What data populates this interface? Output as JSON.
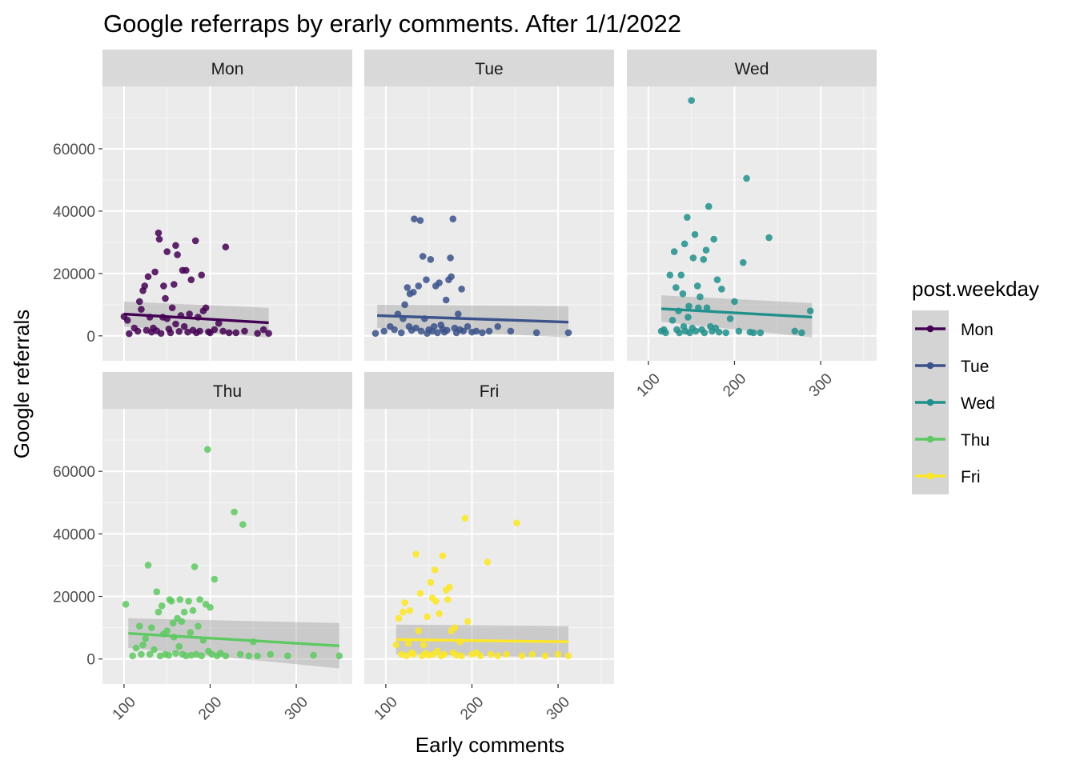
{
  "chart_data": {
    "type": "scatter",
    "title": "Google referraps by erarly comments. After 1/1/2022",
    "xlabel": "Early comments",
    "ylabel": "Google referrals",
    "xlim": [
      75,
      365
    ],
    "ylim": [
      -8000,
      80000
    ],
    "x_ticks": [
      100,
      200,
      300
    ],
    "y_ticks": [
      0,
      20000,
      40000,
      60000
    ],
    "grid": true,
    "facet_layout": "3 columns, 2 rows",
    "legend": {
      "title": "post.weekday",
      "position": "right"
    },
    "series": [
      {
        "name": "Mon",
        "color": "#440154",
        "trend": {
          "x": [
            100,
            268
          ],
          "y": [
            7000,
            4200
          ]
        },
        "band": {
          "upper": [
            11000,
            9000
          ],
          "lower": [
            3000,
            -500
          ]
        },
        "points": [
          [
            100,
            6200
          ],
          [
            104,
            5000
          ],
          [
            106,
            700
          ],
          [
            112,
            2500
          ],
          [
            116,
            1500
          ],
          [
            118,
            11000
          ],
          [
            120,
            8500
          ],
          [
            122,
            14500
          ],
          [
            124,
            16000
          ],
          [
            126,
            1800
          ],
          [
            128,
            19000
          ],
          [
            130,
            6000
          ],
          [
            132,
            1200
          ],
          [
            134,
            2500
          ],
          [
            136,
            20500
          ],
          [
            138,
            1600
          ],
          [
            140,
            33000
          ],
          [
            141,
            31000
          ],
          [
            143,
            800
          ],
          [
            145,
            6000
          ],
          [
            146,
            16000
          ],
          [
            148,
            12000
          ],
          [
            150,
            27000
          ],
          [
            150,
            5500
          ],
          [
            152,
            2200
          ],
          [
            154,
            1000
          ],
          [
            156,
            9000
          ],
          [
            158,
            16500
          ],
          [
            160,
            29000
          ],
          [
            160,
            3800
          ],
          [
            162,
            26000
          ],
          [
            164,
            1400
          ],
          [
            166,
            6500
          ],
          [
            168,
            21000
          ],
          [
            170,
            3000
          ],
          [
            172,
            21000
          ],
          [
            174,
            1200
          ],
          [
            176,
            7000
          ],
          [
            178,
            18000
          ],
          [
            180,
            1800
          ],
          [
            183,
            30500
          ],
          [
            184,
            1000
          ],
          [
            186,
            6000
          ],
          [
            188,
            1500
          ],
          [
            190,
            19500
          ],
          [
            192,
            8000
          ],
          [
            195,
            9000
          ],
          [
            198,
            1300
          ],
          [
            200,
            1000
          ],
          [
            205,
            2000
          ],
          [
            210,
            4000
          ],
          [
            215,
            1500
          ],
          [
            218,
            28500
          ],
          [
            222,
            1000
          ],
          [
            230,
            1000
          ],
          [
            240,
            1500
          ],
          [
            255,
            800
          ],
          [
            262,
            2000
          ],
          [
            268,
            800
          ]
        ]
      },
      {
        "name": "Tue",
        "color": "#3b528b",
        "trend": {
          "x": [
            90,
            312
          ],
          "y": [
            6500,
            4400
          ]
        },
        "band": {
          "upper": [
            10000,
            9500
          ],
          "lower": [
            2500,
            -500
          ]
        },
        "points": [
          [
            88,
            800
          ],
          [
            98,
            1500
          ],
          [
            105,
            3000
          ],
          [
            110,
            2000
          ],
          [
            114,
            7000
          ],
          [
            118,
            1000
          ],
          [
            120,
            5500
          ],
          [
            122,
            10000
          ],
          [
            125,
            15500
          ],
          [
            127,
            3000
          ],
          [
            128,
            13500
          ],
          [
            130,
            1800
          ],
          [
            132,
            14000
          ],
          [
            133,
            37500
          ],
          [
            135,
            2500
          ],
          [
            138,
            16000
          ],
          [
            140,
            37000
          ],
          [
            141,
            1500
          ],
          [
            143,
            25500
          ],
          [
            145,
            5500
          ],
          [
            147,
            18000
          ],
          [
            148,
            800
          ],
          [
            150,
            2000
          ],
          [
            152,
            24500
          ],
          [
            154,
            1500
          ],
          [
            156,
            3000
          ],
          [
            158,
            16000
          ],
          [
            160,
            1000
          ],
          [
            162,
            17000
          ],
          [
            164,
            3500
          ],
          [
            166,
            2200
          ],
          [
            168,
            1200
          ],
          [
            170,
            11500
          ],
          [
            171,
            1800
          ],
          [
            173,
            18000
          ],
          [
            175,
            25000
          ],
          [
            176,
            19000
          ],
          [
            178,
            37500
          ],
          [
            180,
            2500
          ],
          [
            182,
            1000
          ],
          [
            184,
            7000
          ],
          [
            186,
            2000
          ],
          [
            188,
            15000
          ],
          [
            190,
            1500
          ],
          [
            195,
            3000
          ],
          [
            200,
            1200
          ],
          [
            205,
            1500
          ],
          [
            212,
            1000
          ],
          [
            220,
            1500
          ],
          [
            230,
            3000
          ],
          [
            245,
            1500
          ],
          [
            275,
            1000
          ],
          [
            312,
            1000
          ]
        ]
      },
      {
        "name": "Wed",
        "color": "#21908c",
        "trend": {
          "x": [
            115,
            290
          ],
          "y": [
            8700,
            6000
          ]
        },
        "band": {
          "upper": [
            13000,
            10500
          ],
          "lower": [
            4500,
            -500
          ]
        },
        "points": [
          [
            115,
            1500
          ],
          [
            118,
            2000
          ],
          [
            120,
            1000
          ],
          [
            125,
            19500
          ],
          [
            128,
            5000
          ],
          [
            130,
            27000
          ],
          [
            132,
            15500
          ],
          [
            133,
            2000
          ],
          [
            135,
            8000
          ],
          [
            136,
            1000
          ],
          [
            138,
            19500
          ],
          [
            140,
            13500
          ],
          [
            141,
            3000
          ],
          [
            142,
            29500
          ],
          [
            143,
            1500
          ],
          [
            145,
            38000
          ],
          [
            146,
            6000
          ],
          [
            147,
            9500
          ],
          [
            148,
            1000
          ],
          [
            150,
            75500
          ],
          [
            151,
            2500
          ],
          [
            152,
            25000
          ],
          [
            154,
            32500
          ],
          [
            155,
            1500
          ],
          [
            157,
            16000
          ],
          [
            158,
            9000
          ],
          [
            160,
            12500
          ],
          [
            162,
            2000
          ],
          [
            164,
            24500
          ],
          [
            165,
            1000
          ],
          [
            167,
            27500
          ],
          [
            168,
            9000
          ],
          [
            170,
            41500
          ],
          [
            172,
            3000
          ],
          [
            174,
            1500
          ],
          [
            176,
            31000
          ],
          [
            178,
            2500
          ],
          [
            180,
            18000
          ],
          [
            182,
            1200
          ],
          [
            185,
            15000
          ],
          [
            190,
            1000
          ],
          [
            195,
            5500
          ],
          [
            200,
            11000
          ],
          [
            205,
            1500
          ],
          [
            210,
            23500
          ],
          [
            214,
            50500
          ],
          [
            218,
            1200
          ],
          [
            222,
            1000
          ],
          [
            230,
            1000
          ],
          [
            240,
            31500
          ],
          [
            270,
            1500
          ],
          [
            278,
            1000
          ],
          [
            288,
            8000
          ]
        ]
      },
      {
        "name": "Thu",
        "color": "#5ec962",
        "trend": {
          "x": [
            105,
            350
          ],
          "y": [
            8200,
            4200
          ]
        },
        "band": {
          "upper": [
            13000,
            11500
          ],
          "lower": [
            3500,
            -3000
          ]
        },
        "points": [
          [
            102,
            17500
          ],
          [
            110,
            1000
          ],
          [
            114,
            3500
          ],
          [
            118,
            10500
          ],
          [
            120,
            1500
          ],
          [
            122,
            4500
          ],
          [
            125,
            6500
          ],
          [
            128,
            30000
          ],
          [
            130,
            1500
          ],
          [
            132,
            10000
          ],
          [
            135,
            3000
          ],
          [
            138,
            21500
          ],
          [
            140,
            15000
          ],
          [
            142,
            1000
          ],
          [
            144,
            17000
          ],
          [
            146,
            8000
          ],
          [
            148,
            1500
          ],
          [
            150,
            9000
          ],
          [
            152,
            1200
          ],
          [
            153,
            19000
          ],
          [
            155,
            18500
          ],
          [
            157,
            11500
          ],
          [
            158,
            7000
          ],
          [
            160,
            1800
          ],
          [
            162,
            13000
          ],
          [
            164,
            4000
          ],
          [
            165,
            19000
          ],
          [
            167,
            12000
          ],
          [
            168,
            1500
          ],
          [
            170,
            15000
          ],
          [
            172,
            1000
          ],
          [
            175,
            18500
          ],
          [
            177,
            8500
          ],
          [
            178,
            1200
          ],
          [
            180,
            15500
          ],
          [
            182,
            29500
          ],
          [
            184,
            1500
          ],
          [
            186,
            10500
          ],
          [
            188,
            19000
          ],
          [
            190,
            1000
          ],
          [
            192,
            6000
          ],
          [
            195,
            17500
          ],
          [
            197,
            67000
          ],
          [
            198,
            2500
          ],
          [
            200,
            16500
          ],
          [
            202,
            1500
          ],
          [
            205,
            25500
          ],
          [
            208,
            1000
          ],
          [
            212,
            1800
          ],
          [
            218,
            1000
          ],
          [
            228,
            47000
          ],
          [
            235,
            1500
          ],
          [
            238,
            43000
          ],
          [
            245,
            1000
          ],
          [
            250,
            5500
          ],
          [
            255,
            1000
          ],
          [
            270,
            1500
          ],
          [
            290,
            1000
          ],
          [
            320,
            1200
          ],
          [
            350,
            1000
          ]
        ]
      },
      {
        "name": "Fri",
        "color": "#fde725",
        "trend": {
          "x": [
            112,
            312
          ],
          "y": [
            6200,
            5500
          ]
        },
        "band": {
          "upper": [
            11000,
            10500
          ],
          "lower": [
            1500,
            500
          ]
        },
        "points": [
          [
            112,
            4500
          ],
          [
            115,
            13000
          ],
          [
            118,
            1500
          ],
          [
            120,
            15000
          ],
          [
            122,
            18000
          ],
          [
            124,
            1000
          ],
          [
            126,
            5000
          ],
          [
            128,
            15500
          ],
          [
            130,
            2000
          ],
          [
            132,
            1500
          ],
          [
            135,
            33500
          ],
          [
            138,
            9000
          ],
          [
            140,
            21000
          ],
          [
            142,
            1000
          ],
          [
            144,
            4500
          ],
          [
            146,
            1800
          ],
          [
            148,
            13500
          ],
          [
            150,
            1200
          ],
          [
            152,
            24500
          ],
          [
            154,
            19500
          ],
          [
            155,
            1500
          ],
          [
            157,
            28500
          ],
          [
            158,
            18500
          ],
          [
            160,
            2500
          ],
          [
            162,
            14500
          ],
          [
            164,
            1000
          ],
          [
            166,
            33000
          ],
          [
            168,
            1500
          ],
          [
            170,
            22000
          ],
          [
            172,
            19000
          ],
          [
            174,
            23000
          ],
          [
            176,
            9000
          ],
          [
            178,
            2000
          ],
          [
            180,
            10000
          ],
          [
            182,
            1200
          ],
          [
            186,
            5500
          ],
          [
            188,
            1000
          ],
          [
            192,
            45000
          ],
          [
            195,
            12000
          ],
          [
            200,
            1500
          ],
          [
            205,
            2000
          ],
          [
            210,
            1000
          ],
          [
            218,
            31000
          ],
          [
            222,
            1500
          ],
          [
            230,
            1000
          ],
          [
            240,
            1500
          ],
          [
            252,
            43500
          ],
          [
            258,
            1000
          ],
          [
            270,
            1500
          ],
          [
            285,
            1000
          ],
          [
            300,
            1500
          ],
          [
            312,
            1000
          ]
        ]
      }
    ]
  }
}
